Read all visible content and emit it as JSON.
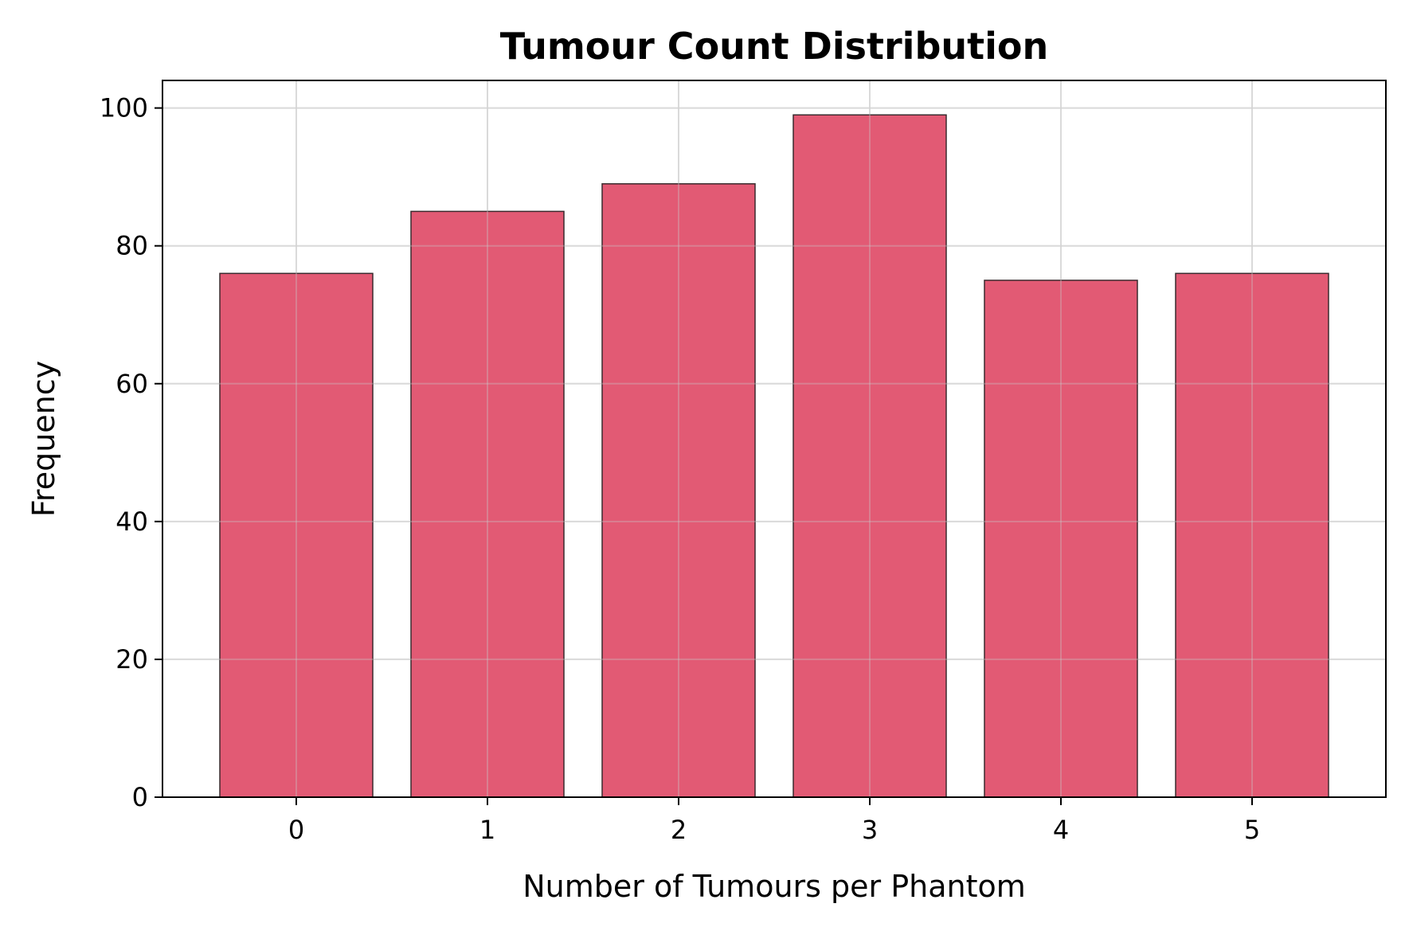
{
  "chart_data": {
    "type": "bar",
    "title": "Tumour Count Distribution",
    "xlabel": "Number of Tumours per Phantom",
    "ylabel": "Frequency",
    "categories": [
      "0",
      "1",
      "2",
      "3",
      "4",
      "5"
    ],
    "values": [
      76,
      85,
      89,
      99,
      75,
      76
    ],
    "xlim": [
      -0.7,
      5.7
    ],
    "ylim": [
      0,
      104
    ],
    "yticks": [
      0,
      20,
      40,
      60,
      80,
      100
    ],
    "grid": true,
    "legend": "none",
    "colors": {
      "bar_fill": "#E25A74",
      "bar_edge": "#3a2a2e",
      "grid": "#e3e3e3",
      "axes": "#000000"
    }
  }
}
